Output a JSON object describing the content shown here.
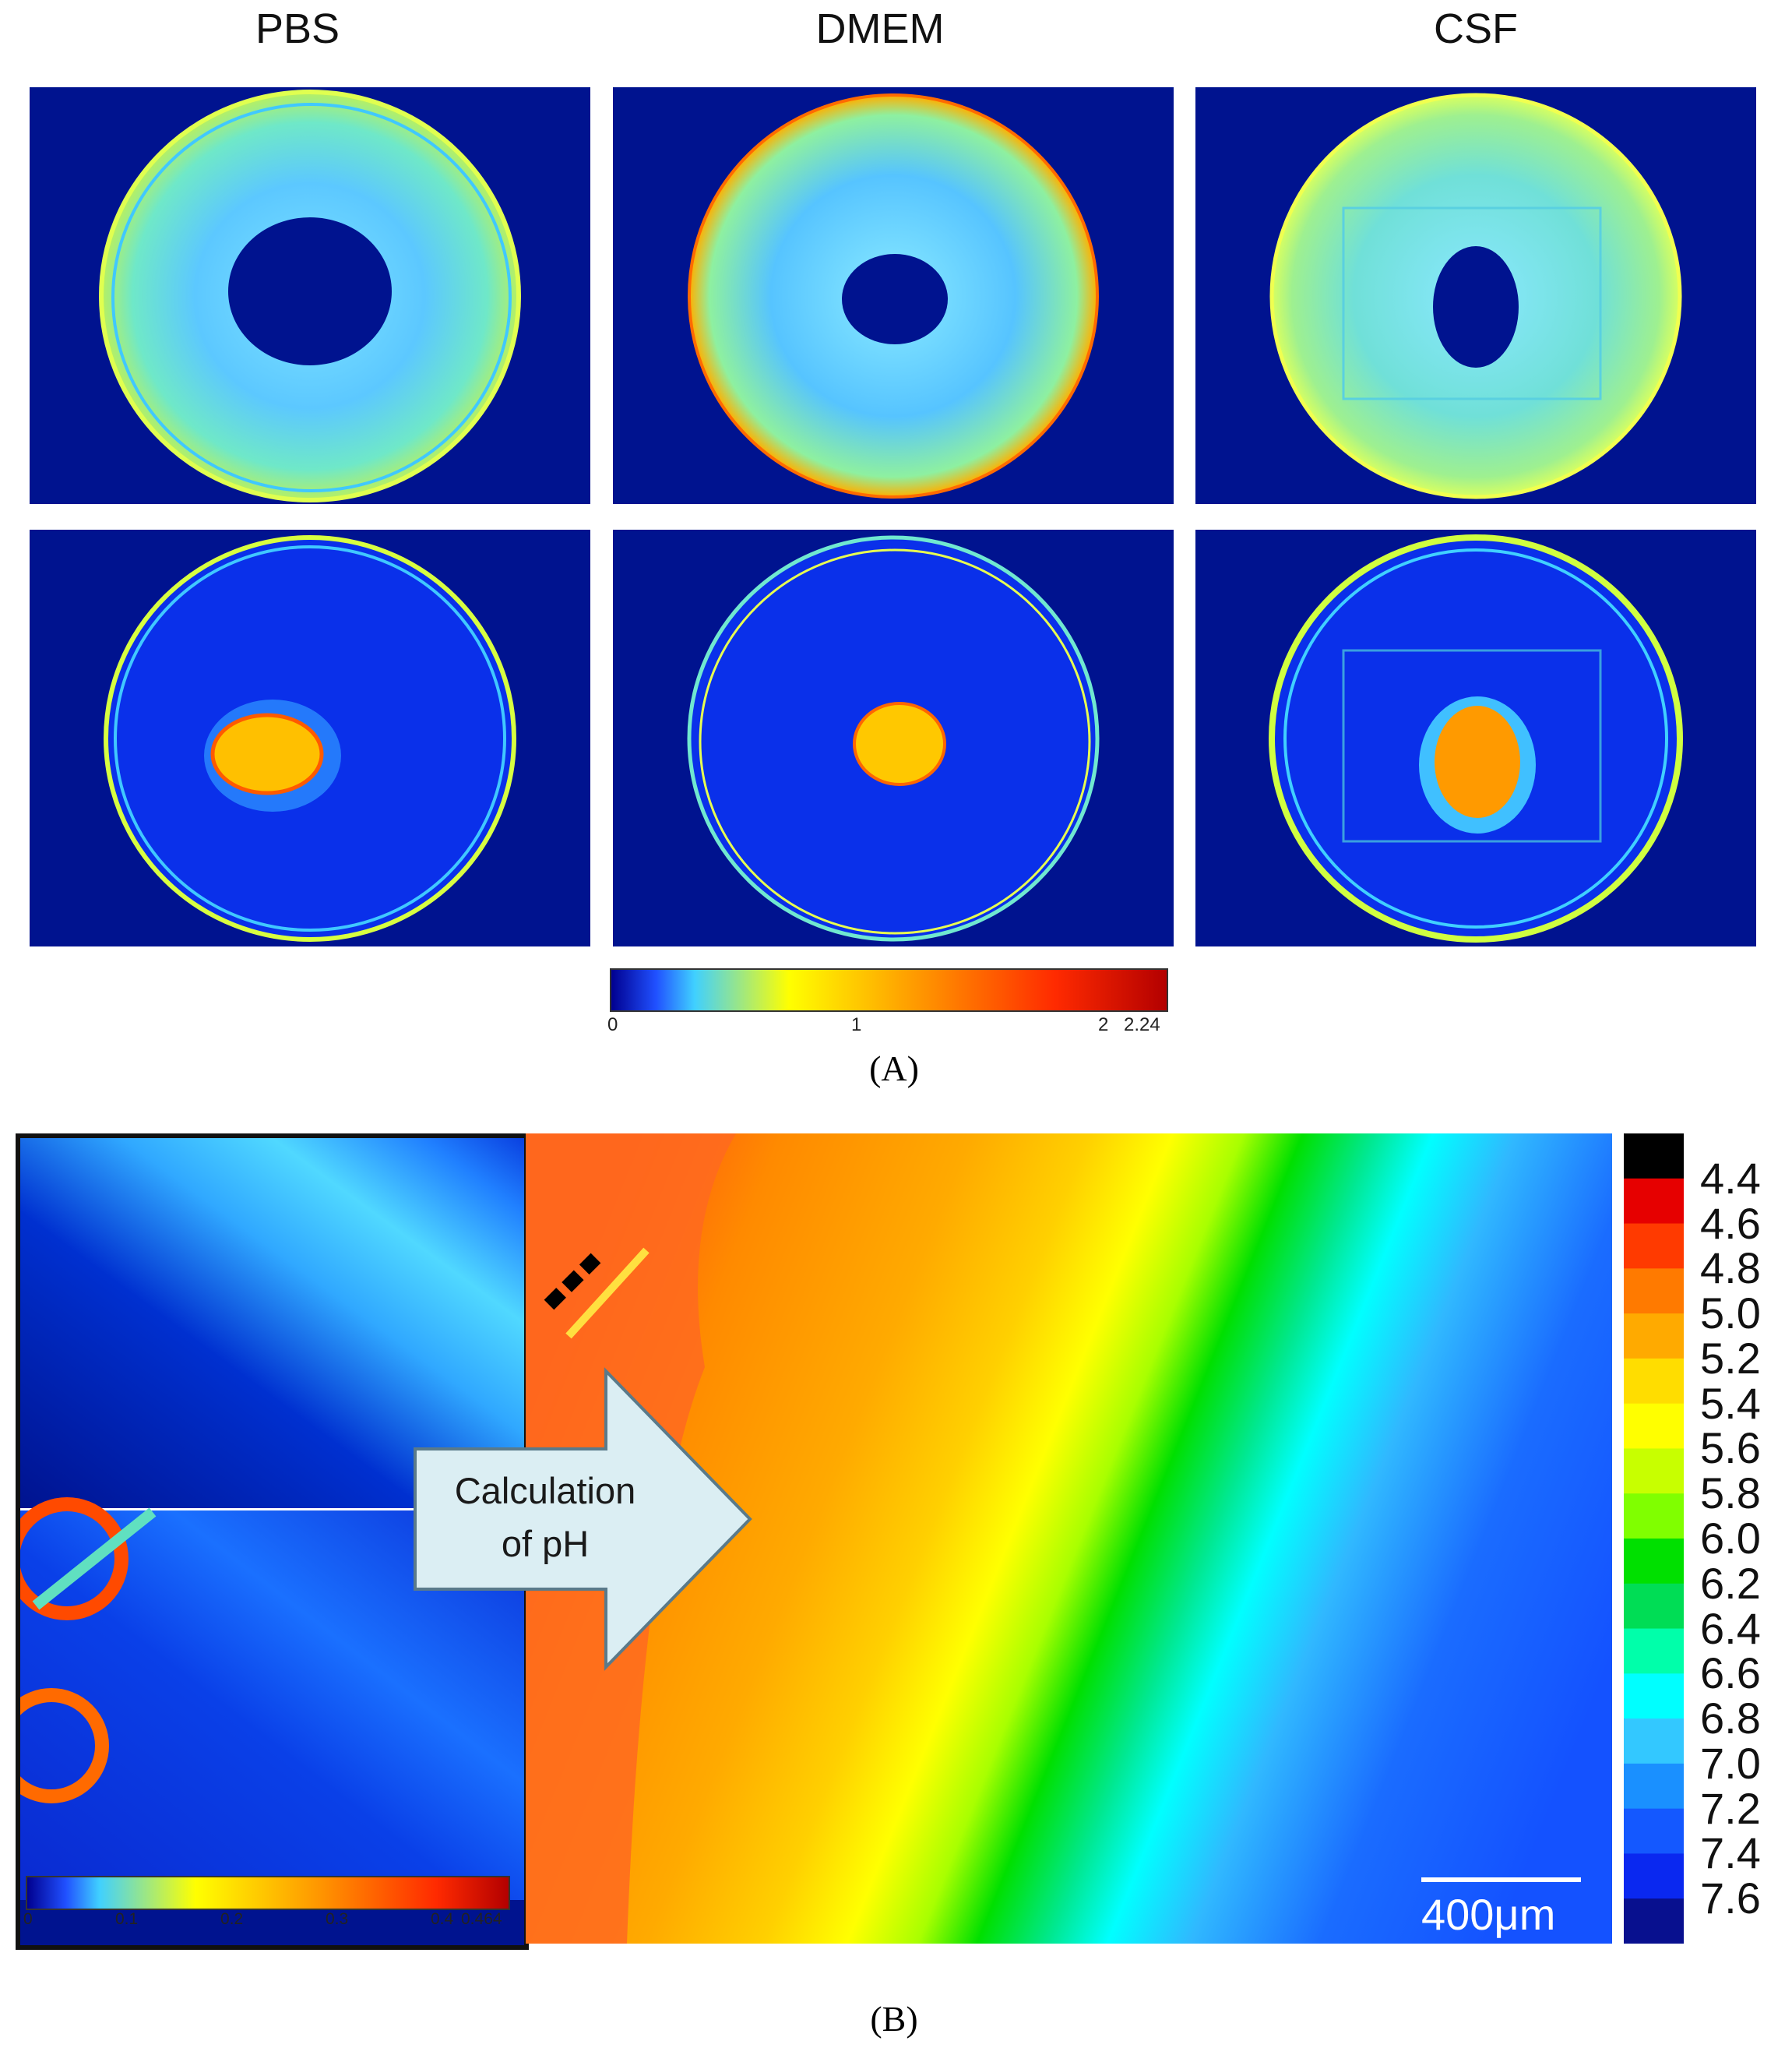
{
  "panel_a": {
    "columns": [
      "PBS",
      "DMEM",
      "CSF"
    ],
    "colorbar": {
      "ticks": [
        "0",
        "1",
        "2",
        "2.24"
      ],
      "colors": [
        "#00008f",
        "#2050ff",
        "#40d0ff",
        "#ffff00",
        "#ff9900",
        "#ff2a00",
        "#b30000"
      ]
    },
    "label": "(A)"
  },
  "panel_b": {
    "arrow_text": [
      "Calculation",
      "of pH"
    ],
    "small_colorbar_ticks": [
      "0",
      "0.1",
      "0.2",
      "0.3",
      "0.4",
      "0.464"
    ],
    "scale_bar": "400μm",
    "ph_legend": [
      "4.4",
      "4.6",
      "4.8",
      "5.0",
      "5.2",
      "5.4",
      "5.6",
      "5.8",
      "6.0",
      "6.2",
      "6.4",
      "6.6",
      "6.8",
      "7.0",
      "7.2",
      "7.4",
      "7.6"
    ],
    "ph_colors": [
      "#000000",
      "#e60000",
      "#ff3a00",
      "#ff7a00",
      "#ffaa00",
      "#ffdd00",
      "#ffff00",
      "#c8ff00",
      "#80ff00",
      "#00e000",
      "#00dd55",
      "#00ffaa",
      "#00ffff",
      "#33c8ff",
      "#1a90ff",
      "#1458ff",
      "#0a28f0",
      "#08108f"
    ],
    "label": "(B)"
  }
}
